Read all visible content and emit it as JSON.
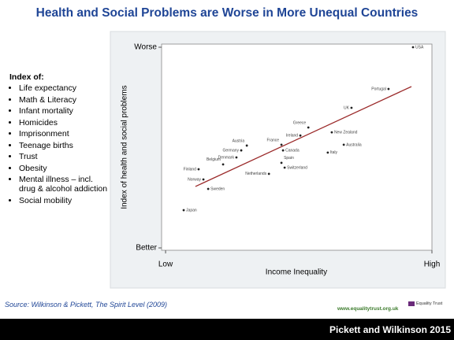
{
  "title": "Health and Social Problems are Worse in More Unequal Countries",
  "index": {
    "heading": "Index of:",
    "items": [
      "Life expectancy",
      "Math & Literacy",
      "Infant mortality",
      "Homicides",
      "Imprisonment",
      "Teenage births",
      "Trust",
      "Obesity",
      "Mental illness – incl. drug & alcohol addiction",
      "Social mobility"
    ]
  },
  "source": "Source: Wilkinson & Pickett, The Spirit Level (2009)",
  "website": "www.equalitytrust.org.uk",
  "logo": "Equality Trust",
  "footer": "Pickett and Wilkinson 2015",
  "chart_data": {
    "type": "scatter",
    "x_label": "Income Inequality",
    "y_label": "Index of health and social problems",
    "point_labels": [
      "USA",
      "Portugal",
      "UK",
      "Greece",
      "New Zealand",
      "Ireland",
      "France",
      "Australia",
      "Austria",
      "Germany",
      "Canada",
      "Denmark",
      "Italy",
      "Spain",
      "Belgium",
      "Switzerland",
      "Finland",
      "Netherlands",
      "Norway",
      "Sweden",
      "Japan"
    ],
    "x": [
      92.9,
      83.7,
      69.8,
      53.6,
      62.4,
      50.6,
      43.5,
      66.9,
      30.5,
      28.4,
      44.1,
      26.6,
      60.9,
      43.5,
      21.6,
      44.7,
      12.4,
      38.8,
      14.2,
      16.0,
      6.8
    ],
    "values": [
      100,
      79.2,
      69.8,
      60,
      57.6,
      56,
      51.4,
      51.4,
      51,
      48.6,
      48.6,
      45.1,
      47.5,
      42.4,
      41.6,
      40,
      39.2,
      36.9,
      34.1,
      29.4,
      18.8
    ],
    "color": "#222222",
    "trendline": {
      "x": [
        11.2,
        92.3
      ],
      "y": [
        30.6,
        80.4
      ],
      "color": "#9b2a2a"
    },
    "xlim": [
      -1.5,
      100
    ],
    "ylim": [
      0,
      100
    ],
    "xticks": [
      {
        "value": 0,
        "label": "Low"
      },
      {
        "value": 100,
        "label": "High"
      }
    ],
    "yticks": [
      {
        "value": 0,
        "label": "Better"
      },
      {
        "value": 100,
        "label": "Worse"
      }
    ]
  }
}
